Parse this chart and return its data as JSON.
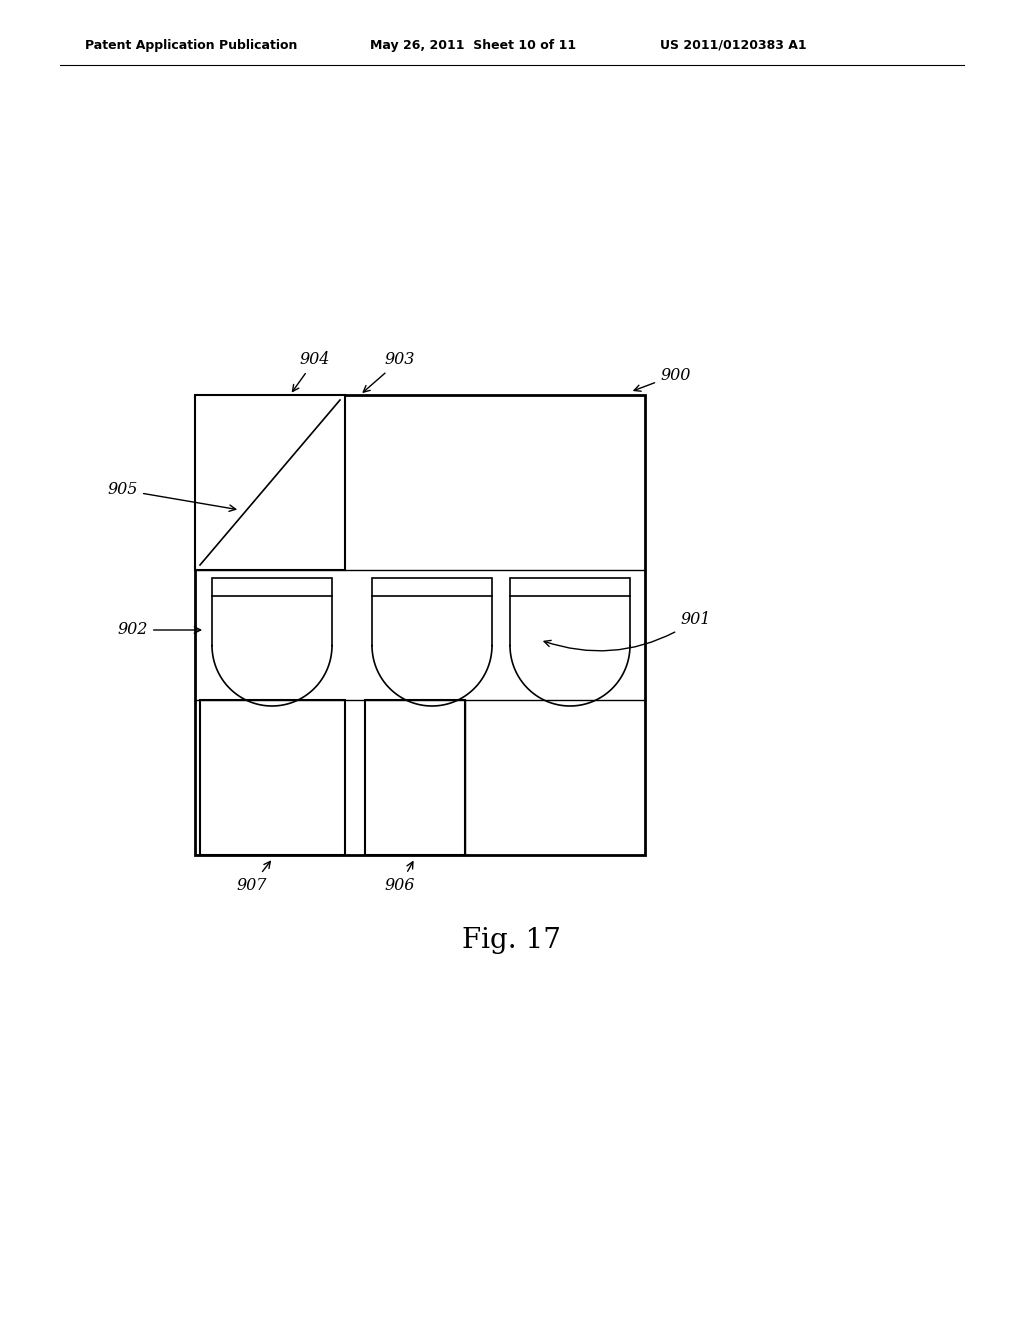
{
  "bg_color": "#ffffff",
  "line_color": "#000000",
  "header_left": "Patent Application Publication",
  "header_mid": "May 26, 2011  Sheet 10 of 11",
  "header_right": "US 2011/0120383 A1",
  "fig_label": "Fig. 17"
}
